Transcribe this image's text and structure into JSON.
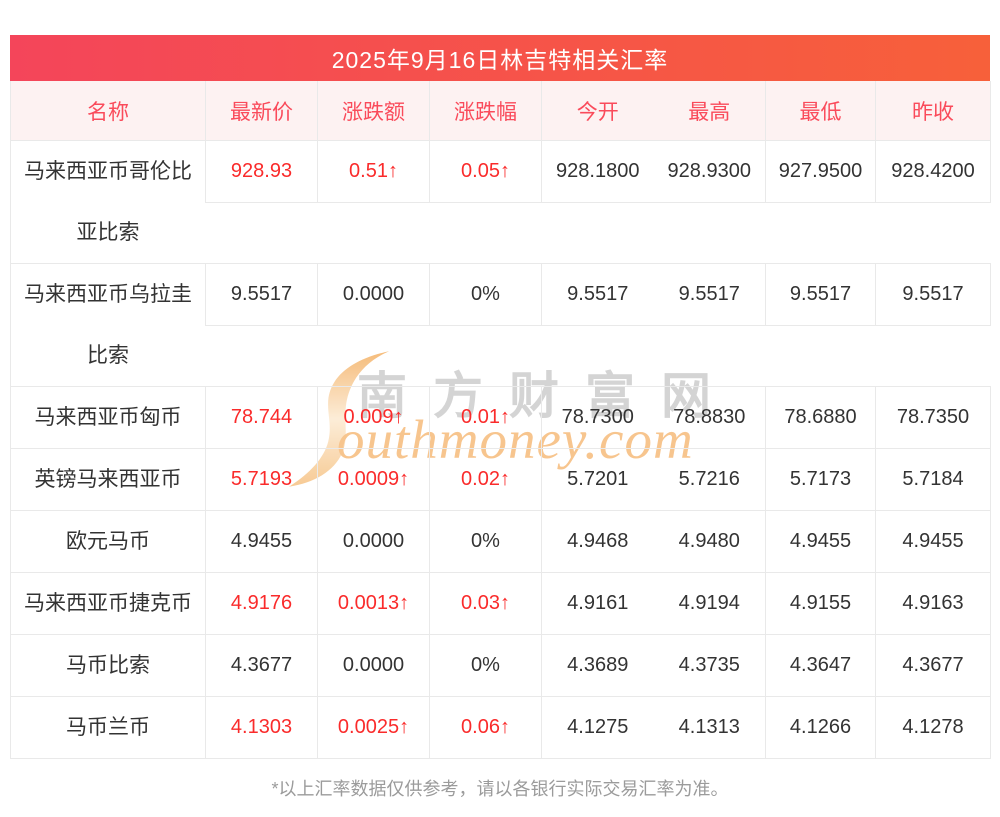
{
  "title": "2025年9月16日林吉特相关汇率",
  "colors": {
    "title_gradient_left": "#f4455a",
    "title_gradient_right": "#f7603a",
    "title_text_color": "#ffffff",
    "header_bg": "#fdf2f2",
    "header_text": "#fa4b5b",
    "text_color": "#333333",
    "up_color": "#fa2b2b",
    "border_color": "#e9e9e9",
    "footer_color": "#9b9b9b",
    "watermark_gray": "#d2d2d2",
    "watermark_orange": "#f7c289"
  },
  "table": {
    "headers": [
      "名称",
      "最新价",
      "涨跌额",
      "涨跌幅",
      "今开",
      "最高",
      "最低",
      "昨收"
    ],
    "rows": [
      {
        "name": "马来西亚币哥伦比亚比索",
        "tall": true,
        "up": true,
        "latest": "928.93",
        "change": "0.51↑",
        "pct": "0.05↑",
        "open": "928.1800",
        "high": "928.9300",
        "low": "927.9500",
        "prev": "928.4200"
      },
      {
        "name": "马来西亚币乌拉圭比索",
        "tall": true,
        "up": false,
        "latest": "9.5517",
        "change": "0.0000",
        "pct": "0%",
        "open": "9.5517",
        "high": "9.5517",
        "low": "9.5517",
        "prev": "9.5517"
      },
      {
        "name": "马来西亚币匈币",
        "tall": false,
        "up": true,
        "latest": "78.744",
        "change": "0.009↑",
        "pct": "0.01↑",
        "open": "78.7300",
        "high": "78.8830",
        "low": "78.6880",
        "prev": "78.7350"
      },
      {
        "name": "英镑马来西亚币",
        "tall": false,
        "up": true,
        "latest": "5.7193",
        "change": "0.0009↑",
        "pct": "0.02↑",
        "open": "5.7201",
        "high": "5.7216",
        "low": "5.7173",
        "prev": "5.7184"
      },
      {
        "name": "欧元马币",
        "tall": false,
        "up": false,
        "latest": "4.9455",
        "change": "0.0000",
        "pct": "0%",
        "open": "4.9468",
        "high": "4.9480",
        "low": "4.9455",
        "prev": "4.9455"
      },
      {
        "name": "马来西亚币捷克币",
        "tall": false,
        "up": true,
        "latest": "4.9176",
        "change": "0.0013↑",
        "pct": "0.03↑",
        "open": "4.9161",
        "high": "4.9194",
        "low": "4.9155",
        "prev": "4.9163"
      },
      {
        "name": "马币比索",
        "tall": false,
        "up": false,
        "latest": "4.3677",
        "change": "0.0000",
        "pct": "0%",
        "open": "4.3689",
        "high": "4.3735",
        "low": "4.3647",
        "prev": "4.3677"
      },
      {
        "name": "马币兰币",
        "tall": false,
        "up": true,
        "latest": "4.1303",
        "change": "0.0025↑",
        "pct": "0.06↑",
        "open": "4.1275",
        "high": "4.1313",
        "low": "4.1266",
        "prev": "4.1278"
      }
    ]
  },
  "watermark": {
    "cn": "南方财富网",
    "en": "outhmoney.com"
  },
  "footer": "*以上汇率数据仅供参考，请以各银行实际交易汇率为准。"
}
